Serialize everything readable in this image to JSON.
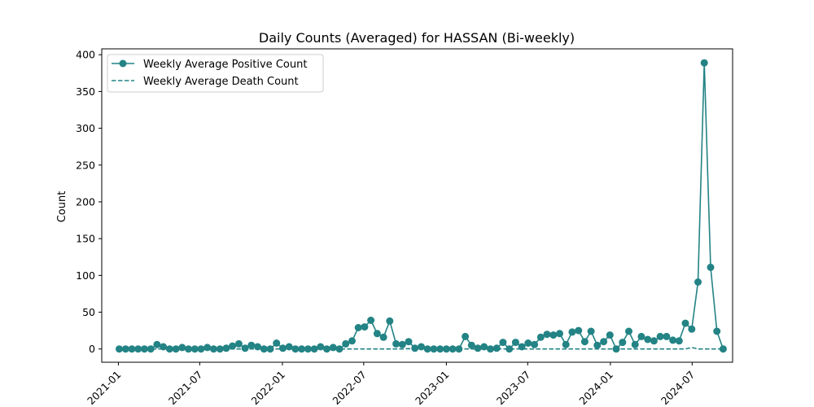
{
  "chart_data": {
    "type": "line",
    "title": "Daily Counts (Averaged) for HASSAN (Bi-weekly)",
    "xlabel": "",
    "ylabel": "Count",
    "xlim": [
      "2020-11-25",
      "2024-09-29"
    ],
    "ylim": [
      -18,
      408
    ],
    "y_ticks": [
      0,
      50,
      100,
      150,
      200,
      250,
      300,
      350,
      400
    ],
    "x_ticks": [
      "2021-01",
      "2021-07",
      "2022-01",
      "2022-07",
      "2023-01",
      "2023-07",
      "2024-01",
      "2024-07"
    ],
    "x_tick_dates": [
      "2021-01-01",
      "2021-07-01",
      "2022-01-01",
      "2022-07-01",
      "2023-01-01",
      "2023-07-01",
      "2024-01-01",
      "2024-07-01"
    ],
    "legend_position": "upper-left",
    "grid": false,
    "colors": {
      "series": "#238385",
      "axes": "#000000",
      "legend_border": "#cccccc"
    },
    "series": [
      {
        "name": "Weekly Average Positive Count",
        "style": "solid-with-markers",
        "points": [
          [
            "2021-01-03",
            0
          ],
          [
            "2021-01-17",
            0
          ],
          [
            "2021-01-31",
            0
          ],
          [
            "2021-02-14",
            0
          ],
          [
            "2021-02-28",
            0
          ],
          [
            "2021-03-14",
            0
          ],
          [
            "2021-03-28",
            6
          ],
          [
            "2021-04-11",
            3
          ],
          [
            "2021-04-25",
            0
          ],
          [
            "2021-05-09",
            0
          ],
          [
            "2021-05-23",
            2
          ],
          [
            "2021-06-06",
            0
          ],
          [
            "2021-06-20",
            0
          ],
          [
            "2021-07-04",
            0
          ],
          [
            "2021-07-18",
            2
          ],
          [
            "2021-08-01",
            0
          ],
          [
            "2021-08-15",
            0
          ],
          [
            "2021-08-29",
            1
          ],
          [
            "2021-09-12",
            4
          ],
          [
            "2021-09-26",
            7
          ],
          [
            "2021-10-10",
            1
          ],
          [
            "2021-10-24",
            5
          ],
          [
            "2021-11-07",
            3
          ],
          [
            "2021-11-21",
            0
          ],
          [
            "2021-12-05",
            0
          ],
          [
            "2021-12-19",
            8
          ],
          [
            "2022-01-02",
            1
          ],
          [
            "2022-01-16",
            3
          ],
          [
            "2022-01-30",
            0
          ],
          [
            "2022-02-13",
            0
          ],
          [
            "2022-02-27",
            0
          ],
          [
            "2022-03-13",
            0
          ],
          [
            "2022-03-27",
            3
          ],
          [
            "2022-04-10",
            0
          ],
          [
            "2022-04-24",
            2
          ],
          [
            "2022-05-08",
            0
          ],
          [
            "2022-05-22",
            7
          ],
          [
            "2022-06-05",
            11
          ],
          [
            "2022-06-19",
            29
          ],
          [
            "2022-07-03",
            30
          ],
          [
            "2022-07-17",
            39
          ],
          [
            "2022-07-31",
            21
          ],
          [
            "2022-08-14",
            16
          ],
          [
            "2022-08-28",
            38
          ],
          [
            "2022-09-11",
            7
          ],
          [
            "2022-09-25",
            6
          ],
          [
            "2022-10-09",
            10
          ],
          [
            "2022-10-23",
            1
          ],
          [
            "2022-11-06",
            3
          ],
          [
            "2022-11-20",
            0
          ],
          [
            "2022-12-04",
            0
          ],
          [
            "2022-12-18",
            0
          ],
          [
            "2023-01-01",
            0
          ],
          [
            "2023-01-15",
            0
          ],
          [
            "2023-01-29",
            0
          ],
          [
            "2023-02-12",
            17
          ],
          [
            "2023-02-26",
            5
          ],
          [
            "2023-03-12",
            1
          ],
          [
            "2023-03-26",
            3
          ],
          [
            "2023-04-09",
            0
          ],
          [
            "2023-04-23",
            1
          ],
          [
            "2023-05-07",
            9
          ],
          [
            "2023-05-21",
            0
          ],
          [
            "2023-06-04",
            9
          ],
          [
            "2023-06-18",
            3
          ],
          [
            "2023-07-02",
            8
          ],
          [
            "2023-07-16",
            6
          ],
          [
            "2023-07-30",
            16
          ],
          [
            "2023-08-13",
            20
          ],
          [
            "2023-08-27",
            19
          ],
          [
            "2023-09-10",
            21
          ],
          [
            "2023-09-24",
            6
          ],
          [
            "2023-10-08",
            23
          ],
          [
            "2023-10-22",
            25
          ],
          [
            "2023-11-05",
            10
          ],
          [
            "2023-11-19",
            24
          ],
          [
            "2023-12-03",
            5
          ],
          [
            "2023-12-17",
            10
          ],
          [
            "2023-12-31",
            19
          ],
          [
            "2024-01-14",
            0
          ],
          [
            "2024-01-28",
            9
          ],
          [
            "2024-02-11",
            24
          ],
          [
            "2024-02-25",
            6
          ],
          [
            "2024-03-10",
            17
          ],
          [
            "2024-03-24",
            13
          ],
          [
            "2024-04-07",
            11
          ],
          [
            "2024-04-21",
            17
          ],
          [
            "2024-05-05",
            17
          ],
          [
            "2024-05-19",
            12
          ],
          [
            "2024-06-02",
            11
          ],
          [
            "2024-06-16",
            35
          ],
          [
            "2024-06-30",
            27
          ],
          [
            "2024-07-14",
            91
          ],
          [
            "2024-07-28",
            389
          ],
          [
            "2024-08-11",
            111
          ],
          [
            "2024-08-25",
            24
          ],
          [
            "2024-09-08",
            0
          ]
        ]
      },
      {
        "name": "Weekly Average Death Count",
        "style": "dashed",
        "points": [
          [
            "2021-01-03",
            0
          ],
          [
            "2022-01-16",
            0
          ],
          [
            "2022-01-30",
            0.5
          ],
          [
            "2022-02-13",
            0
          ],
          [
            "2022-09-25",
            0
          ],
          [
            "2022-10-09",
            0.5
          ],
          [
            "2022-10-23",
            0
          ],
          [
            "2024-06-16",
            0
          ],
          [
            "2024-06-30",
            2
          ],
          [
            "2024-07-14",
            0
          ],
          [
            "2024-09-08",
            0
          ]
        ]
      }
    ]
  }
}
